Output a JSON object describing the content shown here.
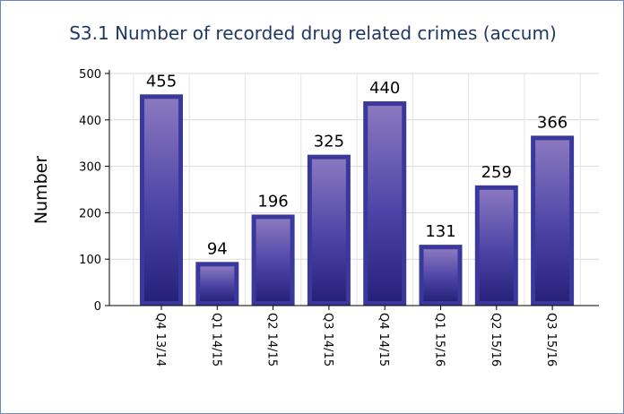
{
  "chart_data": {
    "type": "bar",
    "title": "S3.1 Number of recorded drug related crimes (accum)",
    "xlabel": "",
    "ylabel": "Number",
    "categories": [
      "Q4 13/14",
      "Q1 14/15",
      "Q2 14/15",
      "Q3 14/15",
      "Q4 14/15",
      "Q1 15/16",
      "Q2 15/16",
      "Q3 15/16"
    ],
    "values": [
      455,
      94,
      196,
      325,
      440,
      131,
      259,
      366
    ],
    "ylim": [
      0,
      500
    ],
    "yticks": [
      0,
      100,
      200,
      300,
      400,
      500
    ],
    "grid": true,
    "legend": "none",
    "bar_color": "#3c3a96",
    "bar_highlight": "#8a78c0"
  }
}
